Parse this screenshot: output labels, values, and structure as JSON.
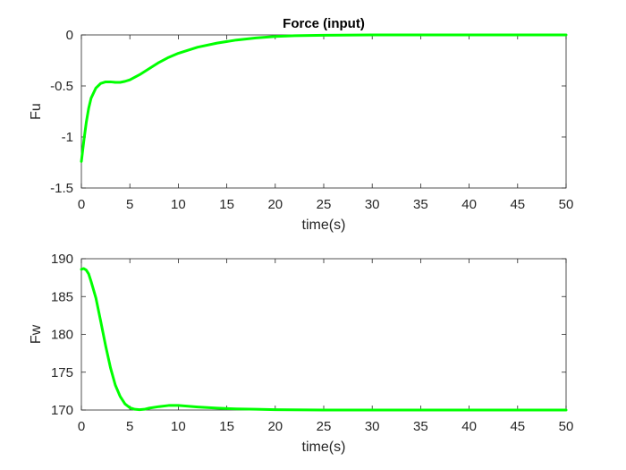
{
  "chart_data": [
    {
      "type": "line",
      "title": "Force (input)",
      "xlabel": "time(s)",
      "ylabel": "Fu",
      "xlim": [
        0,
        50
      ],
      "ylim": [
        -1.5,
        0
      ],
      "xticks": [
        "0",
        "5",
        "10",
        "15",
        "20",
        "25",
        "30",
        "35",
        "40",
        "45",
        "50"
      ],
      "yticks": [
        "0",
        "-0.5",
        "-1",
        "-1.5"
      ],
      "grid": false,
      "color": "#00ff00",
      "series": [
        {
          "x": [
            0,
            0.25,
            0.5,
            0.75,
            1,
            1.5,
            2,
            2.5,
            3,
            3.5,
            4,
            4.5,
            5,
            6,
            7,
            8,
            9,
            10,
            12,
            14,
            16,
            18,
            20,
            22,
            25,
            30,
            35,
            40,
            45,
            50
          ],
          "values": [
            -1.24,
            -1.04,
            -0.86,
            -0.72,
            -0.62,
            -0.52,
            -0.475,
            -0.46,
            -0.46,
            -0.465,
            -0.465,
            -0.455,
            -0.44,
            -0.39,
            -0.33,
            -0.27,
            -0.22,
            -0.18,
            -0.12,
            -0.08,
            -0.05,
            -0.03,
            -0.015,
            -0.008,
            -0.003,
            0,
            0,
            0,
            0,
            0
          ]
        }
      ]
    },
    {
      "type": "line",
      "title": "",
      "xlabel": "time(s)",
      "ylabel": "Fw",
      "xlim": [
        0,
        50
      ],
      "ylim": [
        170,
        190
      ],
      "xticks": [
        "0",
        "5",
        "10",
        "15",
        "20",
        "25",
        "30",
        "35",
        "40",
        "45",
        "50"
      ],
      "yticks": [
        "190",
        "185",
        "180",
        "175",
        "170"
      ],
      "grid": false,
      "color": "#00ff00",
      "series": [
        {
          "x": [
            0,
            0.25,
            0.5,
            0.75,
            1,
            1.5,
            2,
            2.5,
            3,
            3.5,
            4,
            4.5,
            5,
            5.5,
            6,
            6.5,
            7,
            8,
            9,
            10,
            11,
            12,
            14,
            16,
            18,
            20,
            25,
            30,
            40,
            50
          ],
          "values": [
            188.6,
            188.7,
            188.5,
            188,
            187,
            184.8,
            181.7,
            178.5,
            175.6,
            173.3,
            171.8,
            170.8,
            170.3,
            170.1,
            170.05,
            170.1,
            170.25,
            170.45,
            170.6,
            170.6,
            170.5,
            170.4,
            170.25,
            170.15,
            170.1,
            170.05,
            170,
            170,
            170,
            170
          ]
        }
      ]
    }
  ]
}
